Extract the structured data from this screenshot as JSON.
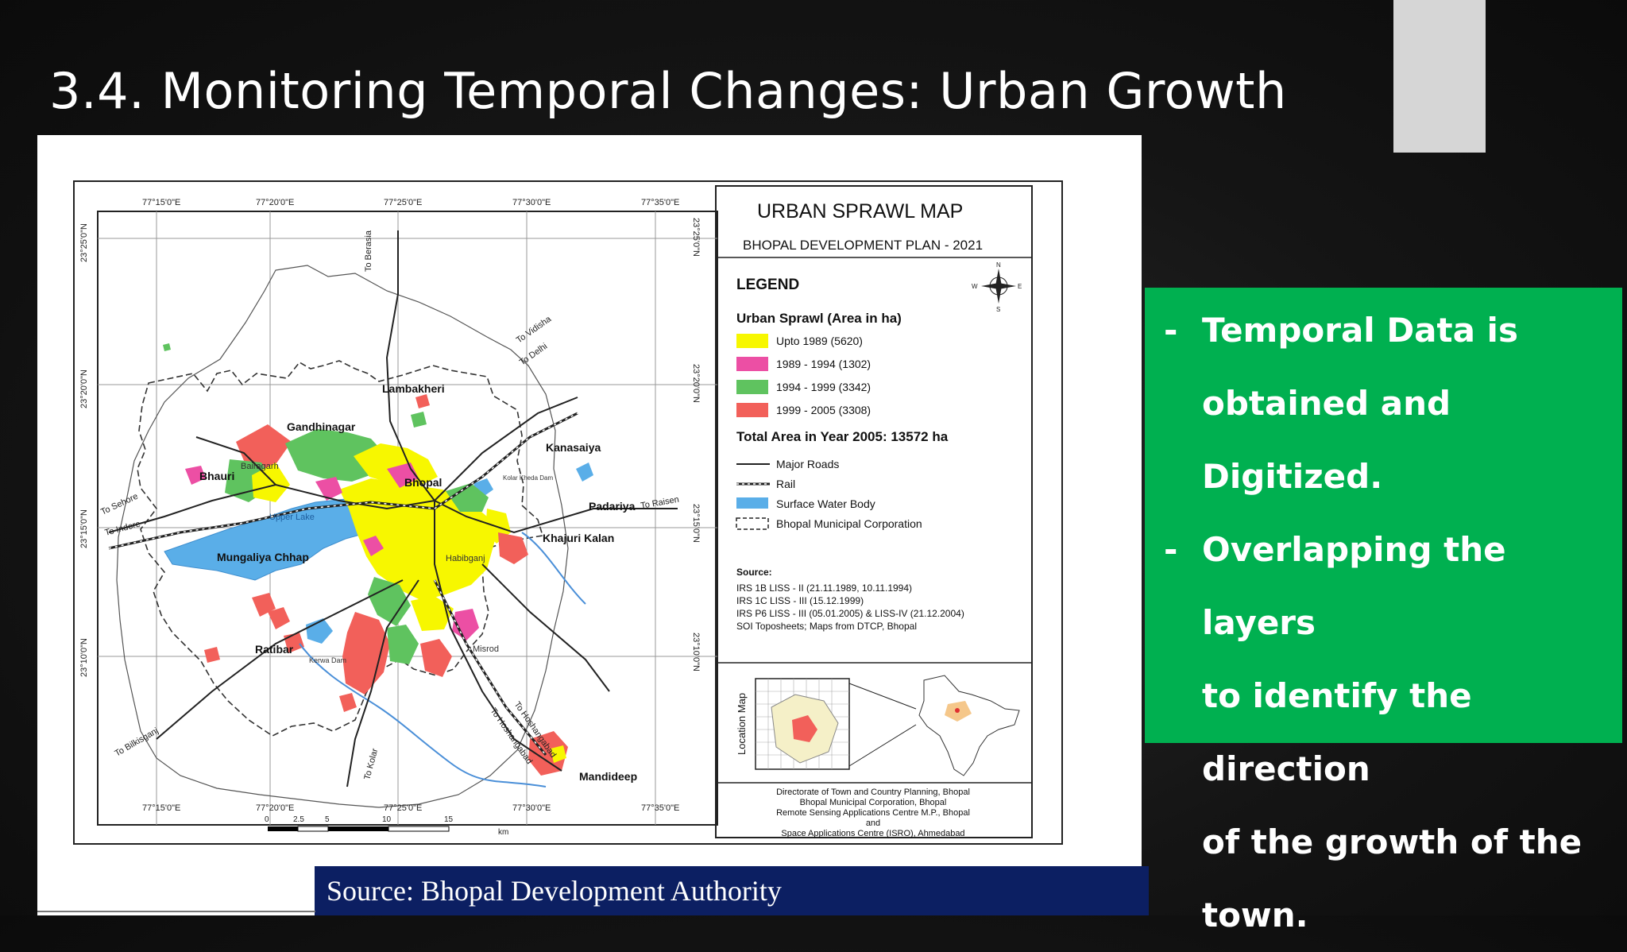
{
  "slide": {
    "title": "3.4. Monitoring Temporal Changes: Urban Growth",
    "bullets": [
      {
        "dash": "-",
        "lines": [
          "Temporal Data is",
          "obtained and Digitized."
        ]
      },
      {
        "dash": "-",
        "lines": [
          "Overlapping the layers",
          "to identify the direction",
          "of the growth of the",
          "town."
        ]
      }
    ],
    "source_caption": "Source: Bhopal Development Authority"
  },
  "map": {
    "title": "URBAN SPRAWL MAP",
    "subtitle": "BHOPAL DEVELOPMENT PLAN - 2021",
    "legend_heading": "LEGEND",
    "sprawl_heading": "Urban Sprawl (Area in ha)",
    "sprawl_items": [
      {
        "label": "Upto 1989 (5620)",
        "color": "#f7f700"
      },
      {
        "label": "1989 - 1994 (1302)",
        "color": "#ec4fa4"
      },
      {
        "label": "1994 - 1999 (3342)",
        "color": "#5fc35f"
      },
      {
        "label": "1999 - 2005 (3308)",
        "color": "#f2605a"
      }
    ],
    "total_area": "Total Area in Year 2005: 13572 ha",
    "line_items": [
      "Major Roads",
      "Rail",
      "Surface Water Body",
      "Bhopal Municipal Corporation"
    ],
    "water_color": "#5aaee8",
    "source_heading": "Source:",
    "source_lines": [
      "IRS 1B LISS - II (21.11.1989, 10.11.1994)",
      "IRS 1C LISS - III (15.12.1999)",
      "IRS P6 LISS - III (05.01.2005) & LISS-IV (21.12.2004)",
      "SOI Toposheets;  Maps from DTCP, Bhopal"
    ],
    "location_map_label": "Location Map",
    "credits": [
      "Directorate of Town and Country Planning, Bhopal",
      "Bhopal Municipal Corporation, Bhopal",
      "Remote Sensing Applications Centre M.P., Bhopal",
      "and",
      "Space Applications Centre (ISRO), Ahmedabad"
    ],
    "longitudes": [
      "77°15'0\"E",
      "77°20'0\"E",
      "77°25'0\"E",
      "77°30'0\"E",
      "77°35'0\"E"
    ],
    "latitudes": [
      "23°25'0\"N",
      "23°20'0\"N",
      "23°15'0\"N",
      "23°10'0\"N"
    ],
    "scale_labels": [
      "0",
      "2.5",
      "5",
      "10",
      "15"
    ],
    "scale_unit": "km",
    "places": [
      "Lambakheri",
      "Gandhinagar",
      "Kanasaiya",
      "Bairagarh",
      "Bhauri",
      "Bhopal",
      "Padariya",
      "Khajuri Kalan",
      "Upper Lake",
      "Mungaliya Chhap",
      "Habibganj",
      "Ratibar",
      "Kerwa Dam",
      "Misrod",
      "Mandideep",
      "Kolar Kheda Dam"
    ],
    "road_labels": [
      "To Berasia",
      "To Vidisha",
      "To Delhi",
      "To Sehore",
      "To Indore",
      "To Raisen",
      "To Bilkisganj",
      "To Kolar",
      "To Hoshangabad",
      "To Hoshangabad"
    ],
    "compass_letters": [
      "N",
      "S",
      "E",
      "W"
    ]
  }
}
